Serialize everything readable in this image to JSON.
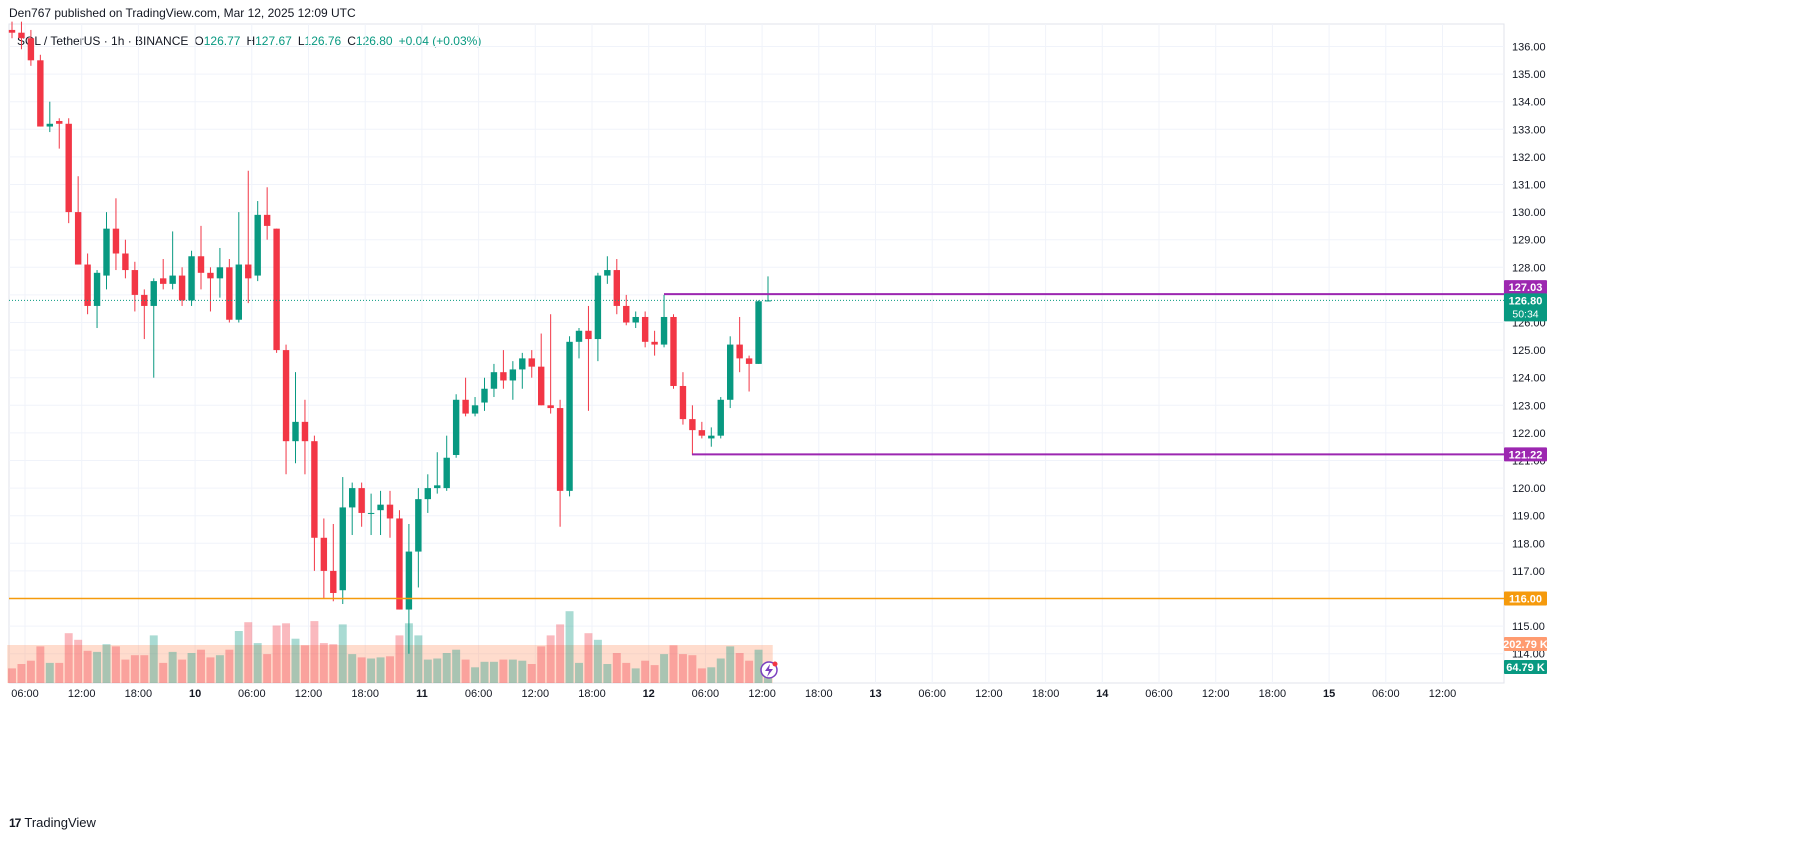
{
  "header": {
    "published": "Den767 published on TradingView.com, Mar 12, 2025 12:09 UTC"
  },
  "legend": {
    "symbol": "SOL / TetherUS · 1h · BINANCE",
    "o_label": "O",
    "o_value": "126.77",
    "h_label": "H",
    "h_value": "127.67",
    "l_label": "L",
    "l_value": "126.76",
    "c_label": "C",
    "c_value": "126.80",
    "change": "+0.04 (+0.03%)"
  },
  "footer": {
    "logo_glyph": "17",
    "brand": "TradingView"
  },
  "colors": {
    "up": "#089981",
    "down": "#f23645",
    "level_line": "#9c27b0",
    "support": "#f59a0c",
    "volume_ma": "#ff9b70"
  },
  "markers": {
    "resistance": {
      "value": 127.03,
      "label": "127.03"
    },
    "last": {
      "value": 126.8,
      "label": "126.80",
      "countdown": "50:34"
    },
    "support": {
      "value": 121.22,
      "label": "121.22"
    },
    "horizontal": {
      "value": 116.0,
      "label": "116.00"
    },
    "vol_ma_label": "202.79 K",
    "vol_label": "64.79 K"
  },
  "chart_data": {
    "type": "candlestick",
    "symbol": "SOL / TetherUS",
    "interval": "1h",
    "exchange": "BINANCE",
    "ylim": [
      113.5,
      136.5
    ],
    "y_ticks": [
      "114.00",
      "115.00",
      "116.00",
      "117.00",
      "118.00",
      "119.00",
      "120.00",
      "121.00",
      "122.00",
      "123.00",
      "124.00",
      "125.00",
      "126.00",
      "127.00",
      "128.00",
      "129.00",
      "130.00",
      "131.00",
      "132.00",
      "133.00",
      "134.00",
      "135.00",
      "136.00"
    ],
    "x_ticks": [
      "06:00",
      "12:00",
      "18:00",
      "10",
      "06:00",
      "12:00",
      "18:00",
      "11",
      "06:00",
      "12:00",
      "18:00",
      "12",
      "06:00",
      "12:00",
      "18:00",
      "13",
      "06:00",
      "12:00",
      "18:00",
      "14",
      "06:00",
      "12:00",
      "18:00",
      "15",
      "06:00",
      "12:00"
    ],
    "candles": [
      [
        136.6,
        136.9,
        136.3,
        136.5
      ],
      [
        136.5,
        136.9,
        135.9,
        136.3
      ],
      [
        136.3,
        136.6,
        135.3,
        135.5
      ],
      [
        135.5,
        135.7,
        133.1,
        133.1
      ],
      [
        133.1,
        134.0,
        132.9,
        133.2
      ],
      [
        133.3,
        133.4,
        132.3,
        133.2
      ],
      [
        133.2,
        133.4,
        129.6,
        130.0
      ],
      [
        130.0,
        131.3,
        128.1,
        128.1
      ],
      [
        128.1,
        128.5,
        126.3,
        126.6
      ],
      [
        126.6,
        127.9,
        125.8,
        127.8
      ],
      [
        127.7,
        130.0,
        127.2,
        129.4
      ],
      [
        129.4,
        130.5,
        127.9,
        128.5
      ],
      [
        128.5,
        129.0,
        127.6,
        127.9
      ],
      [
        127.9,
        128.2,
        126.4,
        127.0
      ],
      [
        127.0,
        127.2,
        125.4,
        126.6
      ],
      [
        126.6,
        127.6,
        124.0,
        127.5
      ],
      [
        127.6,
        128.3,
        127.2,
        127.4
      ],
      [
        127.4,
        129.3,
        127.2,
        127.7
      ],
      [
        127.7,
        128.0,
        126.6,
        126.8
      ],
      [
        126.8,
        128.6,
        126.6,
        128.4
      ],
      [
        128.4,
        129.5,
        127.2,
        127.8
      ],
      [
        127.8,
        128.0,
        126.4,
        127.6
      ],
      [
        127.6,
        128.7,
        126.9,
        128.0
      ],
      [
        128.0,
        128.3,
        126.0,
        126.1
      ],
      [
        126.1,
        130.0,
        126.0,
        128.1
      ],
      [
        128.1,
        131.5,
        126.7,
        127.6
      ],
      [
        127.7,
        130.4,
        127.5,
        129.9
      ],
      [
        129.9,
        130.9,
        129.0,
        129.5
      ],
      [
        129.4,
        129.4,
        124.9,
        125.0
      ],
      [
        125.0,
        125.2,
        120.5,
        121.7
      ],
      [
        121.7,
        124.2,
        120.9,
        122.4
      ],
      [
        122.4,
        123.2,
        120.5,
        121.7
      ],
      [
        121.7,
        121.9,
        117.0,
        118.2
      ],
      [
        118.2,
        118.9,
        116.0,
        117.0
      ],
      [
        117.0,
        118.7,
        115.9,
        116.2
      ],
      [
        116.3,
        120.4,
        115.8,
        119.3
      ],
      [
        119.3,
        120.2,
        118.3,
        120.0
      ],
      [
        120.0,
        120.2,
        118.6,
        119.1
      ],
      [
        119.1,
        119.8,
        118.3,
        119.1
      ],
      [
        119.2,
        119.9,
        118.3,
        119.4
      ],
      [
        119.4,
        119.9,
        118.2,
        118.9
      ],
      [
        118.9,
        119.2,
        115.6,
        115.6
      ],
      [
        115.6,
        118.7,
        114.0,
        117.7
      ],
      [
        117.7,
        120.0,
        116.4,
        119.6
      ],
      [
        119.6,
        120.5,
        119.1,
        120.0
      ],
      [
        120.0,
        121.3,
        119.8,
        120.1
      ],
      [
        120.0,
        121.9,
        119.9,
        121.1
      ],
      [
        121.2,
        123.4,
        121.1,
        123.2
      ],
      [
        123.2,
        124.0,
        122.6,
        122.7
      ],
      [
        122.7,
        123.3,
        122.6,
        123.0
      ],
      [
        123.1,
        124.0,
        122.8,
        123.6
      ],
      [
        123.6,
        124.5,
        123.3,
        124.2
      ],
      [
        124.2,
        125.0,
        123.6,
        123.9
      ],
      [
        123.9,
        124.6,
        123.2,
        124.3
      ],
      [
        124.3,
        124.9,
        123.6,
        124.7
      ],
      [
        124.7,
        125.0,
        124.0,
        124.4
      ],
      [
        124.4,
        125.6,
        123.0,
        123.0
      ],
      [
        123.0,
        126.3,
        122.7,
        122.9
      ],
      [
        122.9,
        123.2,
        118.6,
        119.9
      ],
      [
        119.9,
        125.5,
        119.7,
        125.3
      ],
      [
        125.3,
        125.8,
        124.7,
        125.7
      ],
      [
        125.7,
        126.6,
        122.8,
        125.4
      ],
      [
        125.4,
        127.8,
        124.6,
        127.7
      ],
      [
        127.7,
        128.4,
        127.4,
        127.9
      ],
      [
        127.9,
        128.3,
        126.3,
        126.6
      ],
      [
        126.6,
        127.0,
        125.9,
        126.0
      ],
      [
        126.0,
        126.4,
        125.8,
        126.2
      ],
      [
        126.2,
        126.4,
        125.1,
        125.3
      ],
      [
        125.3,
        125.7,
        124.8,
        125.2
      ],
      [
        125.2,
        127.0,
        125.1,
        126.2
      ],
      [
        126.2,
        126.3,
        123.6,
        123.7
      ],
      [
        123.7,
        124.2,
        122.3,
        122.5
      ],
      [
        122.5,
        123.0,
        121.2,
        122.1
      ],
      [
        122.1,
        122.4,
        121.8,
        121.9
      ],
      [
        121.8,
        122.2,
        121.5,
        121.9
      ],
      [
        121.9,
        123.3,
        121.8,
        123.2
      ],
      [
        123.2,
        125.5,
        122.9,
        125.2
      ],
      [
        125.2,
        126.2,
        124.2,
        124.7
      ],
      [
        124.7,
        124.8,
        123.5,
        124.5
      ],
      [
        124.5,
        126.8,
        124.5,
        126.77
      ],
      [
        126.77,
        127.67,
        126.76,
        126.8
      ]
    ],
    "volume_ma": 202790,
    "volume_last": 64790
  }
}
